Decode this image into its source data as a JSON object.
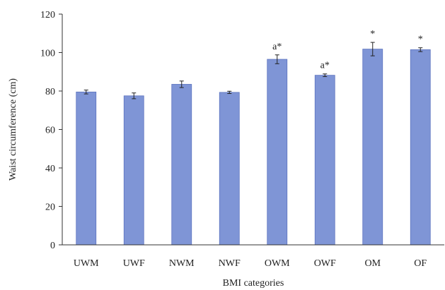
{
  "chart_data": {
    "type": "bar",
    "title": "",
    "xlabel": "BMI categories",
    "ylabel": "Waist circumference (cm)",
    "ylim": [
      0,
      120
    ],
    "yticks": [
      0,
      20,
      40,
      60,
      80,
      100,
      120
    ],
    "grid": false,
    "legend": "none",
    "bar_color": "#7f95d6",
    "bar_edge_color": "#5d74bf",
    "categories": [
      "UWM",
      "UWF",
      "NWM",
      "NWF",
      "OWM",
      "OWF",
      "OM",
      "OF"
    ],
    "values": [
      79.5,
      77.5,
      83.5,
      79.3,
      96.5,
      88.2,
      101.8,
      101.5
    ],
    "errors": [
      1.0,
      1.5,
      1.7,
      0.6,
      2.3,
      0.7,
      3.5,
      1.0
    ],
    "annotations": [
      "",
      "",
      "",
      "",
      "a*",
      "a*",
      "*",
      "*"
    ]
  }
}
